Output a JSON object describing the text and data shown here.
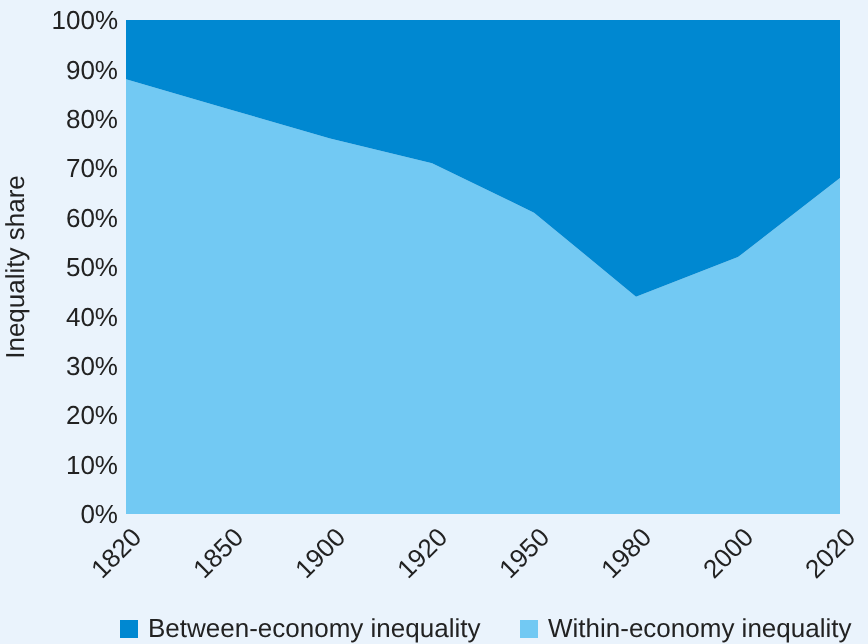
{
  "chart_data": {
    "type": "area",
    "stacked": true,
    "ylabel": "Inequality share",
    "categories": [
      "1820",
      "1850",
      "1900",
      "1920",
      "1950",
      "1980",
      "2000",
      "2020"
    ],
    "series": [
      {
        "name": "Within-economy inequality",
        "color": "#72c9f3",
        "values": [
          88,
          82,
          76,
          71,
          61,
          44,
          52,
          68
        ]
      },
      {
        "name": "Between-economy inequality",
        "color": "#0088d1",
        "values": [
          12,
          18,
          24,
          29,
          39,
          56,
          48,
          32
        ]
      }
    ],
    "ylim": [
      0,
      100
    ],
    "yticks": [
      {
        "value": 0,
        "label": "0%"
      },
      {
        "value": 10,
        "label": "10%"
      },
      {
        "value": 20,
        "label": "20%"
      },
      {
        "value": 30,
        "label": "30%"
      },
      {
        "value": 40,
        "label": "40%"
      },
      {
        "value": 50,
        "label": "50%"
      },
      {
        "value": 60,
        "label": "60%"
      },
      {
        "value": 70,
        "label": "70%"
      },
      {
        "value": 80,
        "label": "80%"
      },
      {
        "value": 90,
        "label": "90%"
      },
      {
        "value": 100,
        "label": "100%"
      }
    ],
    "legend": "bottom"
  }
}
